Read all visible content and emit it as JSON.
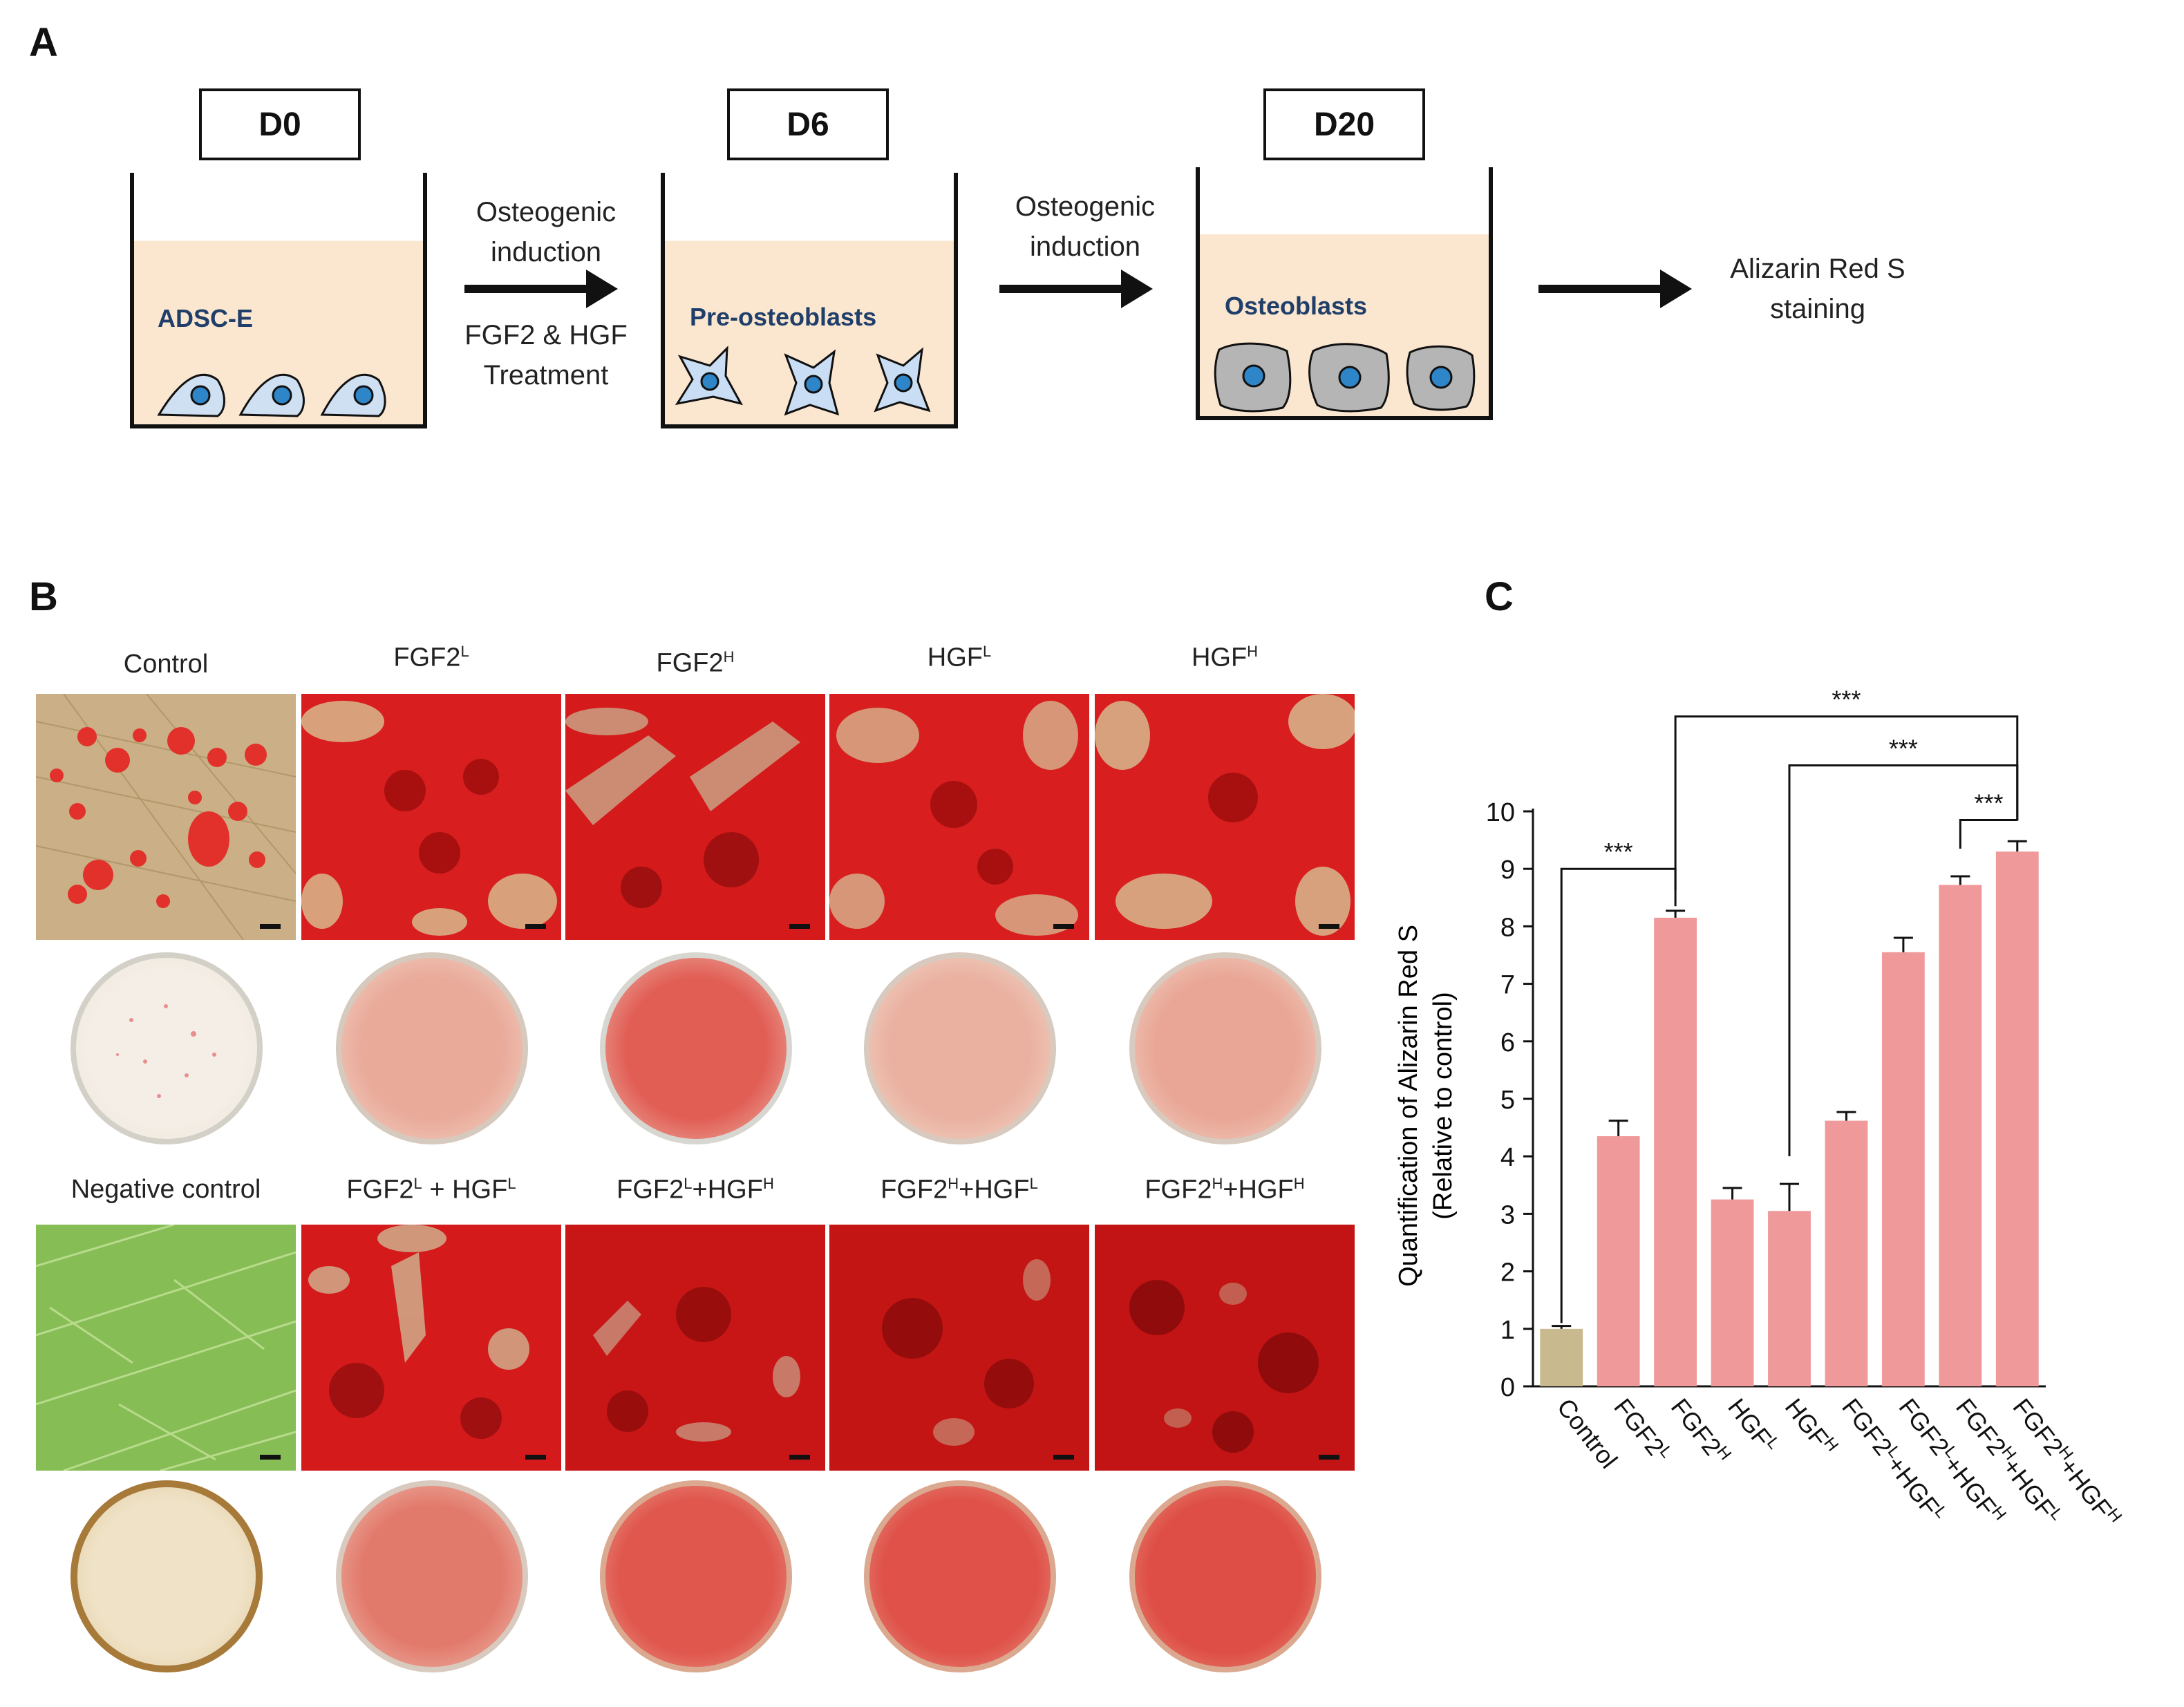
{
  "panels": {
    "a": "A",
    "b": "B",
    "c": "C"
  },
  "schematic": {
    "days": [
      "D0",
      "D6",
      "D20"
    ],
    "dish_labels": [
      "ADSC-E",
      "Pre-osteoblasts",
      "Osteoblasts"
    ],
    "step1": {
      "line1": "Osteogenic",
      "line2": "induction",
      "line3": "FGF2 & HGF",
      "line4": "Treatment"
    },
    "step2": {
      "line1": "Osteogenic",
      "line2": "induction"
    },
    "final": {
      "line1": "Alizarin Red  S",
      "line2": "staining"
    }
  },
  "staining": {
    "row1_titles": [
      {
        "base": "Control",
        "sup": ""
      },
      {
        "base": "FGF2",
        "sup": "L"
      },
      {
        "base": "FGF2",
        "sup": "H"
      },
      {
        "base": "HGF",
        "sup": "L"
      },
      {
        "base": "HGF",
        "sup": "H"
      }
    ],
    "row2_titles": [
      {
        "parts": [
          "Negative  control"
        ]
      },
      {
        "parts": [
          "FGF2",
          "L",
          " + HGF",
          "L"
        ]
      },
      {
        "parts": [
          "FGF2",
          "L",
          "+HGF",
          "H"
        ]
      },
      {
        "parts": [
          "FGF2",
          "H",
          "+HGF",
          "L"
        ]
      },
      {
        "parts": [
          "FGF2",
          "H",
          "+HGF",
          "H"
        ]
      }
    ]
  },
  "colors": {
    "bar": "#f0999b",
    "control_bar": "#c8b98f",
    "red_stain": "#d81e1e",
    "accent_blue": "#1f3f6a"
  },
  "chart_data": {
    "type": "bar",
    "title": "",
    "xlabel": "",
    "ylabel": "Quantification of Alizarin Red  S",
    "ylabel2": "(Relative  to control)",
    "ylim": [
      0,
      10
    ],
    "yticks": [
      0,
      1,
      2,
      3,
      4,
      5,
      6,
      7,
      8,
      9,
      10
    ],
    "categories": [
      {
        "base": "Control",
        "parts": [
          "Control"
        ]
      },
      {
        "base": "FGF2L",
        "parts": [
          "FGF2",
          "L"
        ]
      },
      {
        "base": "FGF2H",
        "parts": [
          "FGF2",
          "H"
        ]
      },
      {
        "base": "HGFL",
        "parts": [
          "HGF",
          "L"
        ]
      },
      {
        "base": "HGFH",
        "parts": [
          "HGF",
          "H"
        ]
      },
      {
        "base": "FGF2L+HGFL",
        "parts": [
          "FGF2",
          "L",
          "+HGF",
          "L"
        ]
      },
      {
        "base": "FGF2L+HGFH",
        "parts": [
          "FGF2",
          "L",
          "+HGF",
          "H"
        ]
      },
      {
        "base": "FGF2H+HGFL",
        "parts": [
          "FGF2",
          "H",
          "+HGF",
          "L"
        ]
      },
      {
        "base": "FGF2H+HGFH",
        "parts": [
          "FGF2",
          "H",
          "+HGF",
          "H"
        ]
      }
    ],
    "values": [
      1.0,
      4.35,
      8.15,
      3.25,
      3.05,
      4.62,
      7.55,
      8.72,
      9.3
    ],
    "errors": [
      0.05,
      0.27,
      0.12,
      0.2,
      0.47,
      0.15,
      0.25,
      0.15,
      0.18
    ],
    "significance": [
      {
        "from": 0,
        "to": 2,
        "label": "***"
      },
      {
        "from": 2,
        "to": 8,
        "label": "***"
      },
      {
        "from": 4,
        "to": 8,
        "label": "***"
      },
      {
        "from": 7,
        "to": 8,
        "label": "***"
      }
    ]
  }
}
